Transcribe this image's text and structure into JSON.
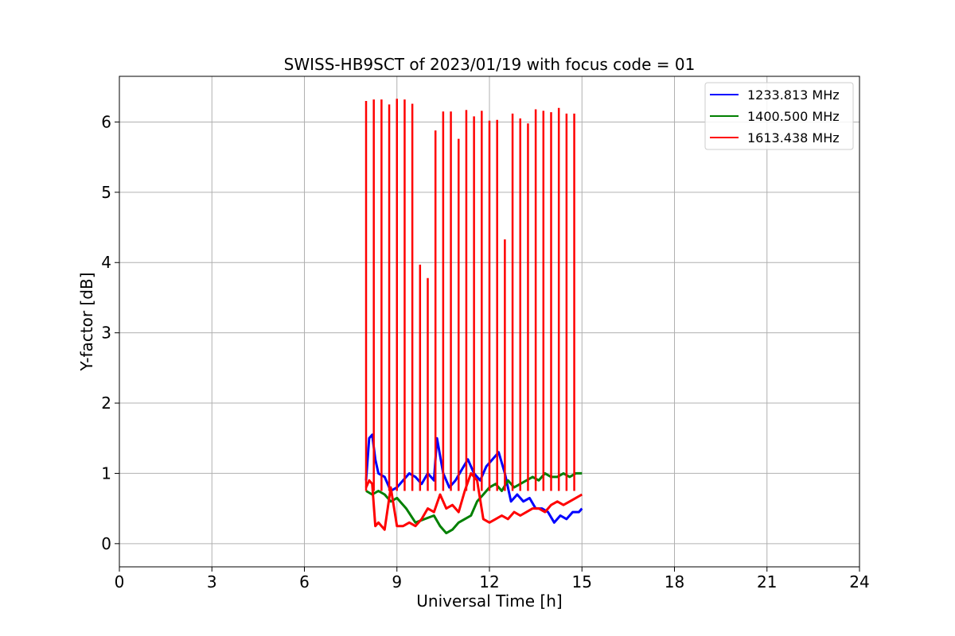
{
  "chart_data": {
    "type": "line",
    "title": "SWISS-HB9SCT of 2023/01/19 with focus code = 01",
    "xlabel": "Universal Time [h]",
    "ylabel": "Y-factor [dB]",
    "xlim": [
      0,
      24
    ],
    "ylim": [
      -0.33,
      6.65
    ],
    "xticks": [
      0,
      3,
      6,
      9,
      12,
      15,
      18,
      21,
      24
    ],
    "yticks": [
      0,
      1,
      2,
      3,
      4,
      5,
      6
    ],
    "grid": true,
    "legend_position": "top-right",
    "series": [
      {
        "name": "1233.813 MHz",
        "color": "#0000ff",
        "x": [
          8.0,
          8.1,
          8.2,
          8.3,
          8.4,
          8.6,
          8.8,
          9.0,
          9.2,
          9.4,
          9.6,
          9.8,
          10.0,
          10.2,
          10.3,
          10.5,
          10.7,
          10.9,
          11.1,
          11.3,
          11.5,
          11.7,
          11.9,
          12.1,
          12.3,
          12.5,
          12.7,
          12.9,
          13.1,
          13.3,
          13.5,
          13.7,
          13.9,
          14.1,
          14.3,
          14.5,
          14.7,
          14.9,
          15.0
        ],
        "y": [
          0.9,
          1.5,
          1.55,
          1.2,
          1.0,
          0.95,
          0.75,
          0.8,
          0.9,
          1.0,
          0.95,
          0.85,
          1.0,
          0.9,
          1.5,
          1.0,
          0.8,
          0.9,
          1.05,
          1.2,
          1.0,
          0.9,
          1.1,
          1.2,
          1.3,
          1.0,
          0.6,
          0.7,
          0.6,
          0.65,
          0.5,
          0.5,
          0.45,
          0.3,
          0.4,
          0.35,
          0.45,
          0.45,
          0.5
        ]
      },
      {
        "name": "1400.500 MHz",
        "color": "#008000",
        "x": [
          8.0,
          8.2,
          8.4,
          8.6,
          8.8,
          9.0,
          9.3,
          9.6,
          9.9,
          10.2,
          10.4,
          10.6,
          10.8,
          11.0,
          11.2,
          11.4,
          11.6,
          11.8,
          12.0,
          12.2,
          12.4,
          12.6,
          12.8,
          13.0,
          13.2,
          13.4,
          13.6,
          13.8,
          14.0,
          14.2,
          14.4,
          14.6,
          14.8,
          15.0
        ],
        "y": [
          0.75,
          0.7,
          0.75,
          0.7,
          0.6,
          0.65,
          0.5,
          0.3,
          0.35,
          0.4,
          0.25,
          0.15,
          0.2,
          0.3,
          0.35,
          0.4,
          0.6,
          0.7,
          0.8,
          0.85,
          0.75,
          0.9,
          0.8,
          0.85,
          0.9,
          0.95,
          0.9,
          1.0,
          0.95,
          0.95,
          1.0,
          0.95,
          1.0,
          1.0
        ]
      },
      {
        "name": "1613.438 MHz",
        "color": "#ff0000",
        "x": [
          8.0,
          8.1,
          8.2,
          8.3,
          8.4,
          8.6,
          8.8,
          9.0,
          9.2,
          9.4,
          9.6,
          9.8,
          10.0,
          10.2,
          10.4,
          10.6,
          10.8,
          11.0,
          11.2,
          11.4,
          11.6,
          11.8,
          12.0,
          12.2,
          12.4,
          12.6,
          12.8,
          13.0,
          13.2,
          13.4,
          13.6,
          13.8,
          14.0,
          14.2,
          14.4,
          14.6,
          14.8,
          15.0
        ],
        "y": [
          0.8,
          0.9,
          0.85,
          0.25,
          0.3,
          0.2,
          0.8,
          0.25,
          0.25,
          0.3,
          0.25,
          0.35,
          0.5,
          0.45,
          0.7,
          0.5,
          0.55,
          0.45,
          0.75,
          1.0,
          0.9,
          0.35,
          0.3,
          0.35,
          0.4,
          0.35,
          0.45,
          0.4,
          0.45,
          0.5,
          0.5,
          0.45,
          0.55,
          0.6,
          0.55,
          0.6,
          0.65,
          0.7
        ]
      }
    ],
    "spikes": {
      "series": "1613.438 MHz",
      "x": [
        8.0,
        8.25,
        8.5,
        8.75,
        9.0,
        9.25,
        9.5,
        9.75,
        10.0,
        10.25,
        10.5,
        10.75,
        11.0,
        11.25,
        11.5,
        11.75,
        12.0,
        12.25,
        12.5,
        12.75,
        13.0,
        13.25,
        13.5,
        13.75,
        14.0,
        14.25,
        14.5,
        14.75
      ],
      "y": [
        6.3,
        6.32,
        6.32,
        6.25,
        6.33,
        6.32,
        6.26,
        3.97,
        3.78,
        5.88,
        6.15,
        6.15,
        5.76,
        6.17,
        6.08,
        6.16,
        6.02,
        6.03,
        4.33,
        6.12,
        6.05,
        5.98,
        6.18,
        6.16,
        6.14,
        6.2,
        6.12,
        6.12
      ]
    }
  }
}
